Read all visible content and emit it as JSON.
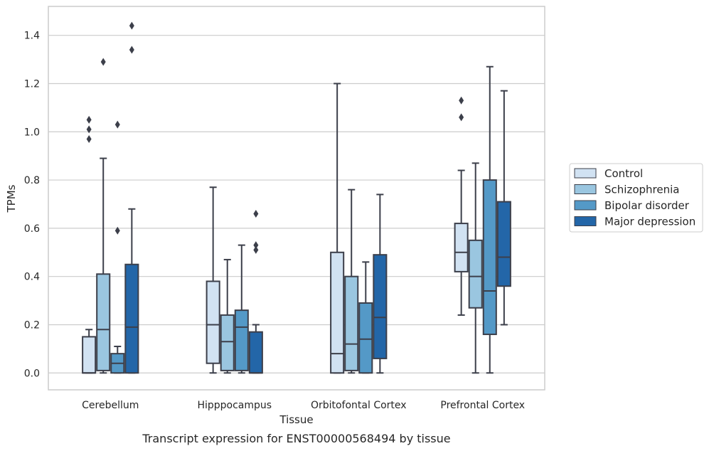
{
  "caption": "Transcript expression for ENST00000568494 by tissue",
  "chart_data": {
    "type": "box",
    "xlabel": "Tissue",
    "ylabel": "TPMs",
    "ylim": [
      -0.07,
      1.52
    ],
    "yticks": [
      "0.0",
      "0.2",
      "0.4",
      "0.6",
      "0.8",
      "1.0",
      "1.2",
      "1.4"
    ],
    "grid": "horizontal",
    "legend_position": "right",
    "categories": [
      "Cerebellum",
      "Hipppocampus",
      "Orbitofontal Cortex",
      "Prefrontal Cortex"
    ],
    "series": [
      {
        "name": "Control",
        "color": "#d1e2f2",
        "boxes": [
          {
            "whisker_low": 0.0,
            "q1": 0.0,
            "median": 0.0,
            "q3": 0.15,
            "whisker_high": 0.18,
            "outliers": [
              0.97,
              1.01,
              1.05
            ]
          },
          {
            "whisker_low": 0.0,
            "q1": 0.04,
            "median": 0.2,
            "q3": 0.38,
            "whisker_high": 0.77,
            "outliers": []
          },
          {
            "whisker_low": 0.0,
            "q1": 0.0,
            "median": 0.08,
            "q3": 0.5,
            "whisker_high": 1.2,
            "outliers": []
          },
          {
            "whisker_low": 0.24,
            "q1": 0.42,
            "median": 0.5,
            "q3": 0.62,
            "whisker_high": 0.84,
            "outliers": [
              1.06,
              1.13
            ]
          }
        ]
      },
      {
        "name": "Schizophrenia",
        "color": "#9ac6e0",
        "boxes": [
          {
            "whisker_low": 0.0,
            "q1": 0.01,
            "median": 0.18,
            "q3": 0.41,
            "whisker_high": 0.89,
            "outliers": [
              1.29
            ]
          },
          {
            "whisker_low": 0.0,
            "q1": 0.01,
            "median": 0.13,
            "q3": 0.24,
            "whisker_high": 0.47,
            "outliers": []
          },
          {
            "whisker_low": 0.0,
            "q1": 0.01,
            "median": 0.12,
            "q3": 0.4,
            "whisker_high": 0.76,
            "outliers": []
          },
          {
            "whisker_low": 0.0,
            "q1": 0.27,
            "median": 0.4,
            "q3": 0.55,
            "whisker_high": 0.87,
            "outliers": []
          }
        ]
      },
      {
        "name": "Bipolar disorder",
        "color": "#5499c7",
        "boxes": [
          {
            "whisker_low": 0.0,
            "q1": 0.0,
            "median": 0.04,
            "q3": 0.08,
            "whisker_high": 0.11,
            "outliers": [
              0.59,
              1.03
            ]
          },
          {
            "whisker_low": 0.0,
            "q1": 0.01,
            "median": 0.19,
            "q3": 0.26,
            "whisker_high": 0.53,
            "outliers": []
          },
          {
            "whisker_low": 0.0,
            "q1": 0.0,
            "median": 0.14,
            "q3": 0.29,
            "whisker_high": 0.46,
            "outliers": []
          },
          {
            "whisker_low": 0.0,
            "q1": 0.16,
            "median": 0.34,
            "q3": 0.8,
            "whisker_high": 1.27,
            "outliers": []
          }
        ]
      },
      {
        "name": "Major depression",
        "color": "#2366a8",
        "boxes": [
          {
            "whisker_low": 0.0,
            "q1": 0.0,
            "median": 0.19,
            "q3": 0.45,
            "whisker_high": 0.68,
            "outliers": [
              1.34,
              1.44
            ]
          },
          {
            "whisker_low": 0.0,
            "q1": 0.0,
            "median": 0.0,
            "q3": 0.17,
            "whisker_high": 0.2,
            "outliers": [
              0.51,
              0.53,
              0.66
            ]
          },
          {
            "whisker_low": 0.0,
            "q1": 0.06,
            "median": 0.23,
            "q3": 0.49,
            "whisker_high": 0.74,
            "outliers": []
          },
          {
            "whisker_low": 0.2,
            "q1": 0.36,
            "median": 0.48,
            "q3": 0.71,
            "whisker_high": 1.17,
            "outliers": []
          }
        ]
      }
    ]
  }
}
